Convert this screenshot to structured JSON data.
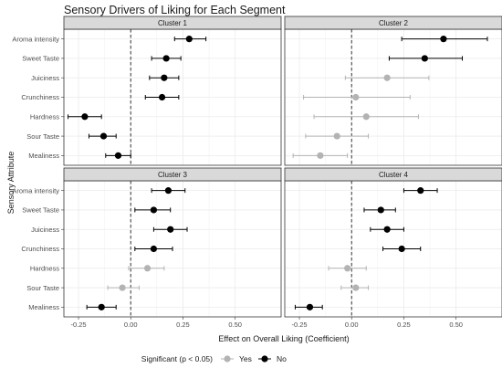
{
  "chart_data": {
    "type": "scatter",
    "subtype": "dot-and-whisker (faceted)",
    "title": "Sensory Drivers of Liking for Each Segment",
    "xlabel": "Effect on Overall Liking (Coefficient)",
    "ylabel": "Sensory Attribute",
    "xlim": [
      -0.32,
      0.72
    ],
    "xticks": [
      -0.25,
      0.0,
      0.25,
      0.5
    ],
    "xtick_labels": [
      "-0.25",
      "0.00",
      "0.25",
      "0.50"
    ],
    "reference_line_x": 0.0,
    "grid": true,
    "categories": [
      "Aroma intensity",
      "Sweet Taste",
      "Juiciness",
      "Crunchiness",
      "Hardness",
      "Sour Taste",
      "Mealiness"
    ],
    "legend": {
      "title": "Significant (p < 0.05)",
      "placement": "bottom",
      "entries": [
        {
          "label": "Yes",
          "color": "#b3b3b3"
        },
        {
          "label": "No",
          "color": "#000000"
        }
      ]
    },
    "colors": {
      "Yes": "#b3b3b3",
      "No": "#000000"
    },
    "panels": [
      {
        "name": "Cluster 1",
        "points": [
          {
            "attribute": "Aroma intensity",
            "estimate": 0.28,
            "low": 0.21,
            "high": 0.36,
            "significant": "No"
          },
          {
            "attribute": "Sweet Taste",
            "estimate": 0.17,
            "low": 0.1,
            "high": 0.24,
            "significant": "No"
          },
          {
            "attribute": "Juiciness",
            "estimate": 0.16,
            "low": 0.09,
            "high": 0.23,
            "significant": "No"
          },
          {
            "attribute": "Crunchiness",
            "estimate": 0.15,
            "low": 0.07,
            "high": 0.23,
            "significant": "No"
          },
          {
            "attribute": "Hardness",
            "estimate": -0.22,
            "low": -0.3,
            "high": -0.14,
            "significant": "No"
          },
          {
            "attribute": "Sour Taste",
            "estimate": -0.13,
            "low": -0.2,
            "high": -0.07,
            "significant": "No"
          },
          {
            "attribute": "Mealiness",
            "estimate": -0.06,
            "low": -0.12,
            "high": 0.0,
            "significant": "No"
          }
        ]
      },
      {
        "name": "Cluster 2",
        "points": [
          {
            "attribute": "Aroma intensity",
            "estimate": 0.44,
            "low": 0.24,
            "high": 0.65,
            "significant": "No"
          },
          {
            "attribute": "Sweet Taste",
            "estimate": 0.35,
            "low": 0.18,
            "high": 0.53,
            "significant": "No"
          },
          {
            "attribute": "Juiciness",
            "estimate": 0.17,
            "low": -0.03,
            "high": 0.37,
            "significant": "Yes"
          },
          {
            "attribute": "Crunchiness",
            "estimate": 0.02,
            "low": -0.23,
            "high": 0.28,
            "significant": "Yes"
          },
          {
            "attribute": "Hardness",
            "estimate": 0.07,
            "low": -0.18,
            "high": 0.32,
            "significant": "Yes"
          },
          {
            "attribute": "Sour Taste",
            "estimate": -0.07,
            "low": -0.22,
            "high": 0.08,
            "significant": "Yes"
          },
          {
            "attribute": "Mealiness",
            "estimate": -0.15,
            "low": -0.28,
            "high": -0.02,
            "significant": "Yes"
          }
        ]
      },
      {
        "name": "Cluster 3",
        "points": [
          {
            "attribute": "Aroma intensity",
            "estimate": 0.18,
            "low": 0.1,
            "high": 0.26,
            "significant": "No"
          },
          {
            "attribute": "Sweet Taste",
            "estimate": 0.11,
            "low": 0.02,
            "high": 0.19,
            "significant": "No"
          },
          {
            "attribute": "Juiciness",
            "estimate": 0.19,
            "low": 0.11,
            "high": 0.27,
            "significant": "No"
          },
          {
            "attribute": "Crunchiness",
            "estimate": 0.11,
            "low": 0.02,
            "high": 0.2,
            "significant": "No"
          },
          {
            "attribute": "Hardness",
            "estimate": 0.08,
            "low": -0.01,
            "high": 0.16,
            "significant": "Yes"
          },
          {
            "attribute": "Sour Taste",
            "estimate": -0.04,
            "low": -0.11,
            "high": 0.04,
            "significant": "Yes"
          },
          {
            "attribute": "Mealiness",
            "estimate": -0.14,
            "low": -0.21,
            "high": -0.07,
            "significant": "No"
          }
        ]
      },
      {
        "name": "Cluster 4",
        "points": [
          {
            "attribute": "Aroma intensity",
            "estimate": 0.33,
            "low": 0.25,
            "high": 0.41,
            "significant": "No"
          },
          {
            "attribute": "Sweet Taste",
            "estimate": 0.14,
            "low": 0.06,
            "high": 0.21,
            "significant": "No"
          },
          {
            "attribute": "Juiciness",
            "estimate": 0.17,
            "low": 0.09,
            "high": 0.25,
            "significant": "No"
          },
          {
            "attribute": "Crunchiness",
            "estimate": 0.24,
            "low": 0.15,
            "high": 0.33,
            "significant": "No"
          },
          {
            "attribute": "Hardness",
            "estimate": -0.02,
            "low": -0.11,
            "high": 0.07,
            "significant": "Yes"
          },
          {
            "attribute": "Sour Taste",
            "estimate": 0.02,
            "low": -0.05,
            "high": 0.08,
            "significant": "Yes"
          },
          {
            "attribute": "Mealiness",
            "estimate": -0.2,
            "low": -0.27,
            "high": -0.14,
            "significant": "No"
          }
        ]
      }
    ]
  }
}
